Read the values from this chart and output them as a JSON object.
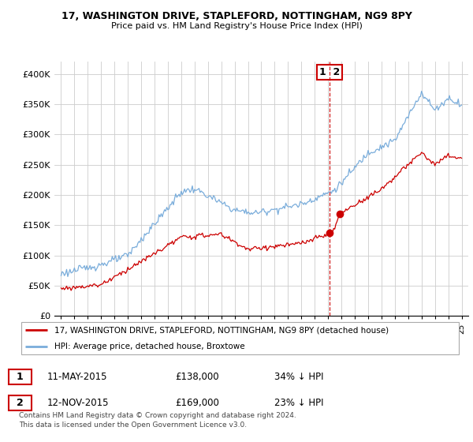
{
  "title": "17, WASHINGTON DRIVE, STAPLEFORD, NOTTINGHAM, NG9 8PY",
  "subtitle": "Price paid vs. HM Land Registry's House Price Index (HPI)",
  "legend_label_red": "17, WASHINGTON DRIVE, STAPLEFORD, NOTTINGHAM, NG9 8PY (detached house)",
  "legend_label_blue": "HPI: Average price, detached house, Broxtowe",
  "transaction1_date": "11-MAY-2015",
  "transaction1_price": "£138,000",
  "transaction1_hpi": "34% ↓ HPI",
  "transaction2_date": "12-NOV-2015",
  "transaction2_price": "£169,000",
  "transaction2_hpi": "23% ↓ HPI",
  "footer": "Contains HM Land Registry data © Crown copyright and database right 2024.\nThis data is licensed under the Open Government Licence v3.0.",
  "red_color": "#cc0000",
  "blue_color": "#7aaddb",
  "annotation_box_color": "#cc0000",
  "ylim": [
    0,
    420000
  ],
  "yticks": [
    0,
    50000,
    100000,
    150000,
    200000,
    250000,
    300000,
    350000,
    400000
  ],
  "ytick_labels": [
    "£0",
    "£50K",
    "£100K",
    "£150K",
    "£200K",
    "£250K",
    "£300K",
    "£350K",
    "£400K"
  ]
}
